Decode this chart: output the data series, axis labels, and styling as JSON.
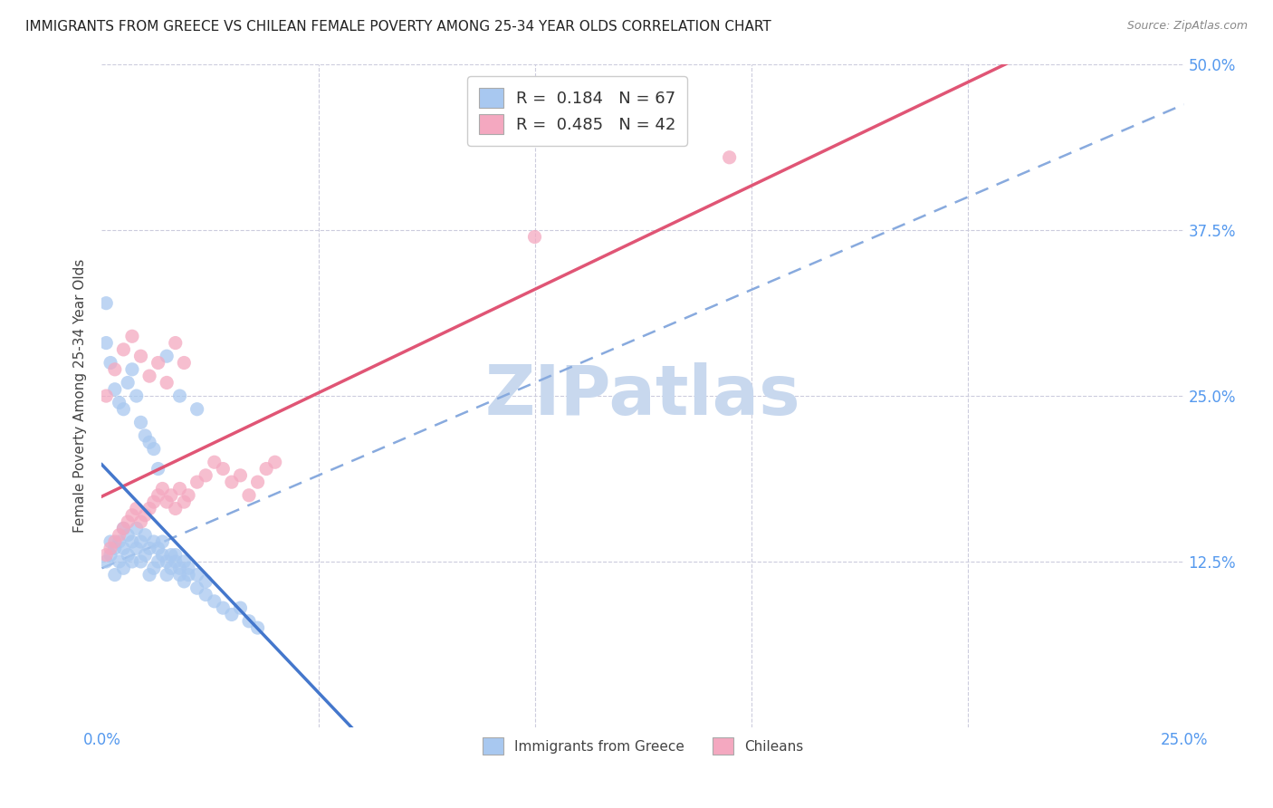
{
  "title": "IMMIGRANTS FROM GREECE VS CHILEAN FEMALE POVERTY AMONG 25-34 YEAR OLDS CORRELATION CHART",
  "source": "Source: ZipAtlas.com",
  "ylabel": "Female Poverty Among 25-34 Year Olds",
  "xlim": [
    0,
    0.25
  ],
  "ylim": [
    0,
    0.5
  ],
  "r1": 0.184,
  "n1": 67,
  "r2": 0.485,
  "n2": 42,
  "color_blue": "#A8C8F0",
  "color_pink": "#F4A8C0",
  "color_blue_line": "#4477CC",
  "color_pink_line": "#E05575",
  "color_blue_dash": "#88AADE",
  "color_axis": "#5599EE",
  "watermark_color": "#C8D8EE",
  "background_color": "#FFFFFF",
  "title_fontsize": 11,
  "source_fontsize": 9,
  "seed": 42,
  "blue_x": [
    0.001,
    0.002,
    0.002,
    0.003,
    0.003,
    0.004,
    0.004,
    0.005,
    0.005,
    0.005,
    0.006,
    0.006,
    0.007,
    0.007,
    0.008,
    0.008,
    0.009,
    0.009,
    0.01,
    0.01,
    0.011,
    0.011,
    0.012,
    0.012,
    0.013,
    0.013,
    0.014,
    0.014,
    0.015,
    0.015,
    0.016,
    0.016,
    0.017,
    0.017,
    0.018,
    0.018,
    0.019,
    0.019,
    0.02,
    0.02,
    0.022,
    0.022,
    0.024,
    0.024,
    0.026,
    0.028,
    0.03,
    0.032,
    0.034,
    0.036,
    0.001,
    0.001,
    0.002,
    0.003,
    0.004,
    0.005,
    0.006,
    0.007,
    0.008,
    0.009,
    0.01,
    0.011,
    0.012,
    0.013,
    0.015,
    0.018,
    0.022
  ],
  "blue_y": [
    0.125,
    0.13,
    0.14,
    0.135,
    0.115,
    0.125,
    0.14,
    0.12,
    0.135,
    0.15,
    0.13,
    0.145,
    0.125,
    0.14,
    0.135,
    0.15,
    0.125,
    0.14,
    0.13,
    0.145,
    0.135,
    0.115,
    0.14,
    0.12,
    0.135,
    0.125,
    0.13,
    0.14,
    0.125,
    0.115,
    0.13,
    0.12,
    0.125,
    0.13,
    0.12,
    0.115,
    0.125,
    0.11,
    0.12,
    0.115,
    0.115,
    0.105,
    0.11,
    0.1,
    0.095,
    0.09,
    0.085,
    0.09,
    0.08,
    0.075,
    0.32,
    0.29,
    0.275,
    0.255,
    0.245,
    0.24,
    0.26,
    0.27,
    0.25,
    0.23,
    0.22,
    0.215,
    0.21,
    0.195,
    0.28,
    0.25,
    0.24
  ],
  "pink_x": [
    0.001,
    0.002,
    0.003,
    0.004,
    0.005,
    0.006,
    0.007,
    0.008,
    0.009,
    0.01,
    0.011,
    0.012,
    0.013,
    0.014,
    0.015,
    0.016,
    0.017,
    0.018,
    0.019,
    0.02,
    0.022,
    0.024,
    0.026,
    0.028,
    0.03,
    0.032,
    0.034,
    0.036,
    0.038,
    0.04,
    0.001,
    0.003,
    0.005,
    0.007,
    0.009,
    0.011,
    0.013,
    0.015,
    0.017,
    0.019,
    0.1,
    0.145
  ],
  "pink_y": [
    0.13,
    0.135,
    0.14,
    0.145,
    0.15,
    0.155,
    0.16,
    0.165,
    0.155,
    0.16,
    0.165,
    0.17,
    0.175,
    0.18,
    0.17,
    0.175,
    0.165,
    0.18,
    0.17,
    0.175,
    0.185,
    0.19,
    0.2,
    0.195,
    0.185,
    0.19,
    0.175,
    0.185,
    0.195,
    0.2,
    0.25,
    0.27,
    0.285,
    0.295,
    0.28,
    0.265,
    0.275,
    0.26,
    0.29,
    0.275,
    0.37,
    0.43
  ]
}
